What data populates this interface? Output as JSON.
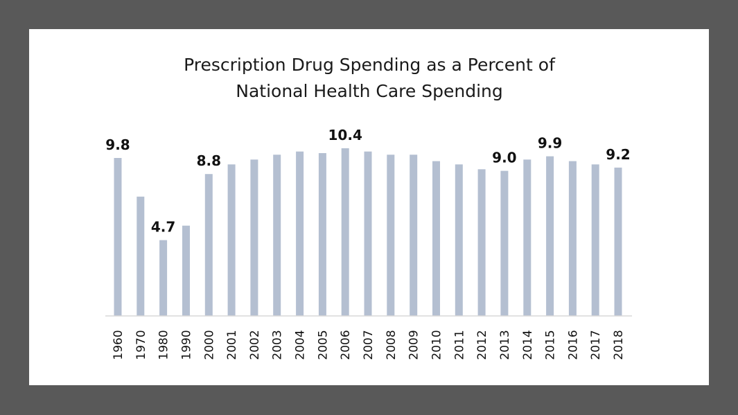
{
  "chart_data": {
    "type": "bar",
    "title": [
      "Prescription Drug Spending as a Percent of",
      "National Health Care Spending"
    ],
    "xlabel": "",
    "ylabel": "",
    "categories": [
      "1960",
      "1970",
      "1980",
      "1990",
      "2000",
      "2001",
      "2002",
      "2003",
      "2004",
      "2005",
      "2006",
      "2007",
      "2008",
      "2009",
      "2010",
      "2011",
      "2012",
      "2013",
      "2014",
      "2015",
      "2016",
      "2017",
      "2018"
    ],
    "values": [
      9.8,
      7.4,
      4.7,
      5.6,
      8.8,
      9.4,
      9.7,
      10.0,
      10.2,
      10.1,
      10.4,
      10.2,
      10.0,
      10.0,
      9.6,
      9.4,
      9.1,
      9.0,
      9.7,
      9.9,
      9.6,
      9.4,
      9.2
    ],
    "labeled": {
      "1960": "9.8",
      "1980": "4.7",
      "2000": "8.8",
      "2006": "10.4",
      "2013": "9.0",
      "2015": "9.9",
      "2018": "9.2"
    },
    "ylim": [
      0,
      10.4
    ],
    "grid": false,
    "bar_color": "#b4bfd1",
    "axis_color": "#d9d9d9"
  }
}
